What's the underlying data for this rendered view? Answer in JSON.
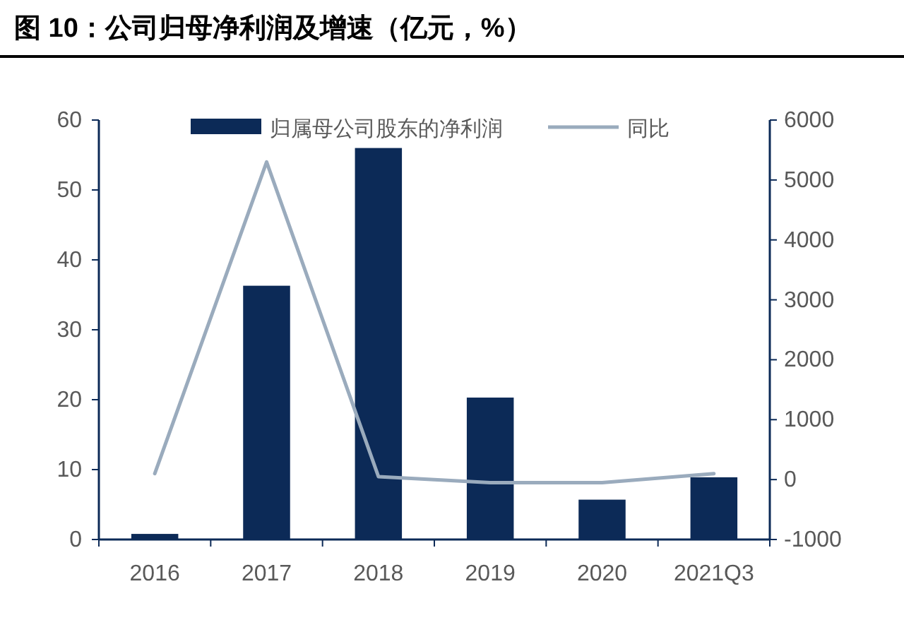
{
  "chart_data": {
    "type": "bar",
    "title": "图 10：公司归母净利润及增速（亿元，%）",
    "categories": [
      "2016",
      "2017",
      "2018",
      "2019",
      "2020",
      "2021Q3"
    ],
    "series": [
      {
        "name": "归属母公司股东的净利润",
        "color": "#0c2a57",
        "values": [
          0.8,
          36.3,
          56.0,
          20.3,
          5.7,
          8.9
        ]
      },
      {
        "name": "同比",
        "type": "line",
        "axis": "y2",
        "color": "#9aabbd",
        "values": [
          100,
          5300,
          50,
          -50,
          -50,
          100
        ]
      }
    ],
    "ylim": [
      0,
      60
    ],
    "yticks": [
      0,
      10,
      20,
      30,
      40,
      50,
      60
    ],
    "y2lim": [
      -1000,
      6000
    ],
    "y2ticks": [
      -1000,
      0,
      1000,
      2000,
      3000,
      4000,
      5000,
      6000
    ],
    "grid": false,
    "legend": "top",
    "marker": "none",
    "line_style": "solid"
  }
}
